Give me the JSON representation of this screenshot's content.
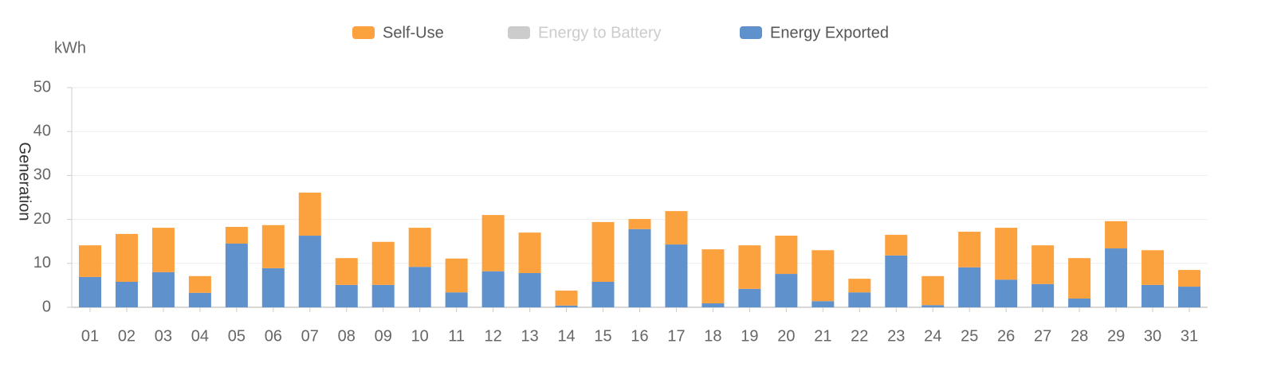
{
  "chart_data": {
    "type": "bar",
    "stacked": true,
    "y_unit": "kWh",
    "y_label": "Generation",
    "categories": [
      "01",
      "02",
      "03",
      "04",
      "05",
      "06",
      "07",
      "08",
      "09",
      "10",
      "11",
      "12",
      "13",
      "14",
      "15",
      "16",
      "17",
      "18",
      "19",
      "20",
      "21",
      "22",
      "23",
      "24",
      "25",
      "26",
      "27",
      "28",
      "29",
      "30",
      "31"
    ],
    "series": [
      {
        "name": "Self-Use",
        "color": "#fba13e",
        "values": [
          7.2,
          10.9,
          10.1,
          3.8,
          3.8,
          9.8,
          9.8,
          6.1,
          9.8,
          8.9,
          7.7,
          12.8,
          9.2,
          3.4,
          13.6,
          2.3,
          7.6,
          12.3,
          9.9,
          8.7,
          11.6,
          3.1,
          4.7,
          6.6,
          8.1,
          11.8,
          8.8,
          9.2,
          6.2,
          7.9,
          3.8
        ]
      },
      {
        "name": "Energy to Battery",
        "color": "#cccccc",
        "hidden": true,
        "values": [
          null,
          null,
          null,
          null,
          null,
          null,
          null,
          null,
          null,
          null,
          null,
          null,
          null,
          null,
          null,
          null,
          null,
          null,
          null,
          null,
          null,
          null,
          null,
          null,
          null,
          null,
          null,
          null,
          null,
          null,
          null
        ]
      },
      {
        "name": "Energy Exported",
        "color": "#5f91cc",
        "values": [
          6.9,
          5.8,
          8.0,
          3.3,
          14.5,
          8.9,
          16.3,
          5.1,
          5.1,
          9.2,
          3.4,
          8.2,
          7.8,
          0.4,
          5.8,
          17.8,
          14.3,
          0.9,
          4.2,
          7.6,
          1.4,
          3.4,
          11.8,
          0.5,
          9.1,
          6.3,
          5.3,
          2.0,
          13.4,
          5.1,
          4.7
        ]
      }
    ],
    "ylim": [
      0,
      50
    ],
    "yticks": [
      0,
      10,
      20,
      30,
      40,
      50
    ],
    "grid": true
  }
}
